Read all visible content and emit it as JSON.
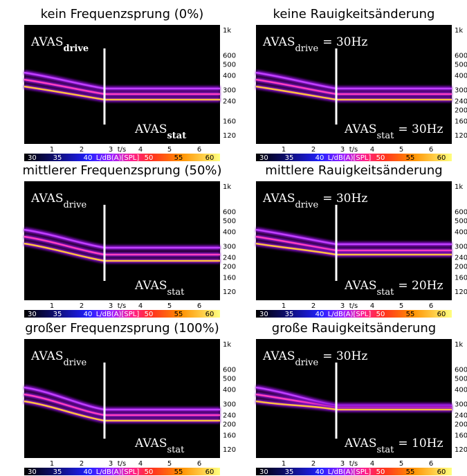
{
  "panels": [
    {
      "title": "kein Frequenzsprung (0%)",
      "bold_subscript": true,
      "drive": {
        "text": "AVAS",
        "sub": "drive"
      },
      "stat": {
        "text": "AVAS",
        "sub": "stat"
      },
      "y_ticks": [
        {
          "value": 1000,
          "label": "1k"
        },
        600,
        500,
        400,
        300,
        240,
        160,
        120
      ],
      "x_tick_labels": [
        "1",
        "2",
        "3",
        "t/s",
        "4",
        "5",
        "6"
      ],
      "colorbar_labels": [
        "30",
        "35",
        "40",
        "L/dB(A)[SPL]",
        "50",
        "55",
        "60"
      ]
    },
    {
      "title": "keine Rauigkeitsänderung",
      "bold_subscript": false,
      "drive": {
        "text": "AVAS",
        "sub": "drive",
        "suffix": "= 30Hz"
      },
      "stat": {
        "text": "AVAS",
        "sub": "stat",
        "suffix": "= 30Hz"
      },
      "y_ticks": [
        {
          "value": 1000,
          "label": "1k"
        },
        600,
        500,
        400,
        300,
        240,
        200,
        160,
        120
      ],
      "x_tick_labels": [
        "1",
        "2",
        "3",
        "t/s",
        "4",
        "5",
        "6"
      ],
      "colorbar_labels": [
        "30",
        "35",
        "40",
        "L/dB(A)[SPL]",
        "50",
        "55",
        "60"
      ]
    },
    {
      "title": "mittlerer Frequenzsprung (50%)",
      "bold_subscript": false,
      "drive": {
        "text": "AVAS",
        "sub": "drive"
      },
      "stat": {
        "text": "AVAS",
        "sub": "stat"
      },
      "y_ticks": [
        {
          "value": 1000,
          "label": "1k"
        },
        600,
        500,
        400,
        300,
        240,
        200,
        160,
        120
      ],
      "x_tick_labels": [
        "1",
        "2",
        "3",
        "t/s",
        "4",
        "5",
        "6"
      ],
      "colorbar_labels": [
        "30",
        "35",
        "40",
        "L/dB(A)[SPL]",
        "50",
        "55",
        "60"
      ]
    },
    {
      "title": "mittlere Rauigkeitsänderung",
      "bold_subscript": false,
      "drive": {
        "text": "AVAS",
        "sub": "drive",
        "suffix": "= 30Hz"
      },
      "stat": {
        "text": "AVAS",
        "sub": "stat",
        "suffix": "= 20Hz"
      },
      "y_ticks": [
        {
          "value": 1000,
          "label": "1k"
        },
        600,
        500,
        400,
        300,
        240,
        200,
        160,
        120
      ],
      "x_tick_labels": [
        "1",
        "2",
        "3",
        "t/s",
        "4",
        "5",
        "6"
      ],
      "colorbar_labels": [
        "30",
        "35",
        "40",
        "L/dB(A)[SPL]",
        "50",
        "55",
        "60"
      ]
    },
    {
      "title": "großer Frequenzsprung (100%)",
      "bold_subscript": false,
      "drive": {
        "text": "AVAS",
        "sub": "drive"
      },
      "stat": {
        "text": "AVAS",
        "sub": "stat"
      },
      "y_ticks": [
        {
          "value": 1000,
          "label": "1k"
        },
        600,
        500,
        400,
        300,
        240,
        200,
        160,
        120
      ],
      "x_tick_labels": [
        "1",
        "2",
        "3",
        "t/s",
        "4",
        "5",
        "6"
      ],
      "colorbar_labels": [
        "30",
        "35",
        "40",
        "L/dB(A)[SPL]",
        "50",
        "55",
        "60"
      ]
    },
    {
      "title": "große Rauigkeitsänderung",
      "bold_subscript": false,
      "drive": {
        "text": "AVAS",
        "sub": "drive",
        "suffix": "= 30Hz"
      },
      "stat": {
        "text": "AVAS",
        "sub": "stat",
        "suffix": "= 10Hz"
      },
      "y_ticks": [
        {
          "value": 1000,
          "label": "1k"
        },
        600,
        500,
        400,
        300,
        240,
        200,
        160,
        120
      ],
      "x_tick_labels": [
        "1",
        "2",
        "3",
        "t/s",
        "4",
        "5",
        "6"
      ],
      "colorbar_labels": [
        "30",
        "35",
        "40",
        "L/dB(A)[SPL]",
        "50",
        "55",
        "60"
      ]
    }
  ]
}
